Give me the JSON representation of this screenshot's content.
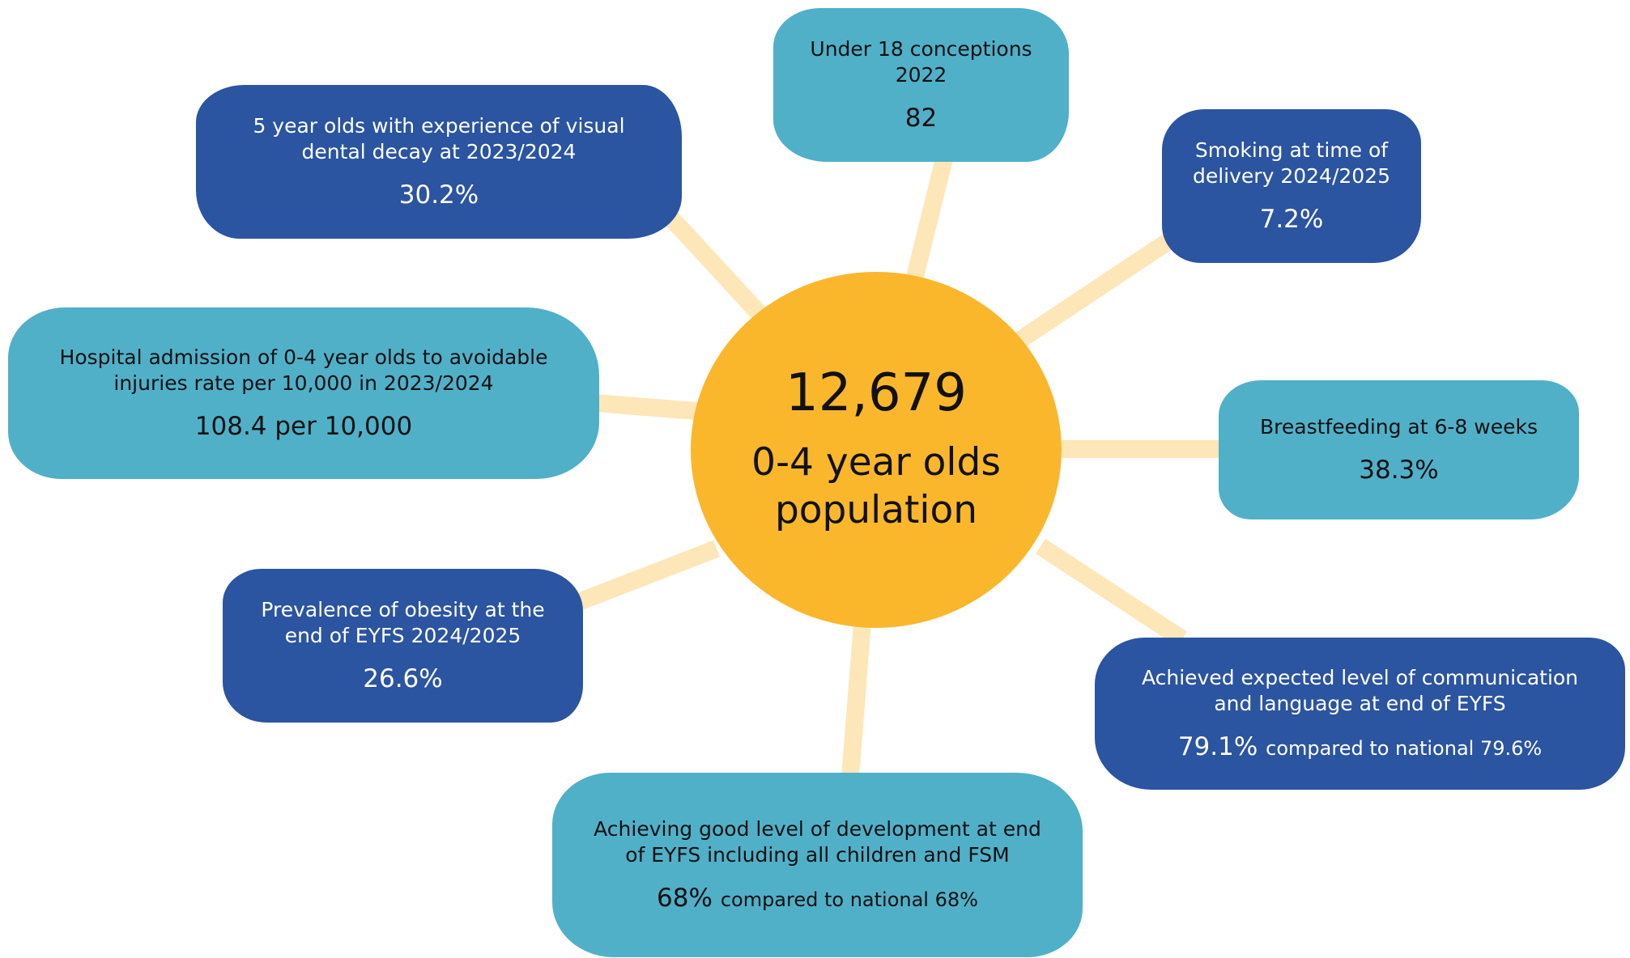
{
  "center": {
    "number": "12,679",
    "label": "0-4 year olds population"
  },
  "colors": {
    "center": "#fab72c",
    "dark_bubble": "#2b54a1",
    "light_bubble": "#50b0c8",
    "connector": "#fde7b9"
  },
  "bubbles": {
    "dental": {
      "title": "5 year olds with experience of visual dental decay at 2023/2024",
      "value": "30.2%"
    },
    "conceptions": {
      "title": "Under 18 conceptions 2022",
      "value": "82"
    },
    "smoking": {
      "title": "Smoking at time of delivery 2024/2025",
      "value": "7.2%"
    },
    "hospital": {
      "title": "Hospital admission of 0-4 year olds to avoidable injuries rate per 10,000 in 2023/2024",
      "value": "108.4 per 10,000"
    },
    "breastfeeding": {
      "title": "Breastfeeding at 6-8 weeks",
      "value": "38.3%"
    },
    "obesity": {
      "title": "Prevalence of obesity at the end of EYFS 2024/2025",
      "value": "26.6%"
    },
    "communication": {
      "title": "Achieved expected level of communication and language at end of EYFS",
      "value": "79.1%",
      "compare": "compared to national 79.6%"
    },
    "development": {
      "title": "Achieving good level of development at end of EYFS including all children and FSM",
      "value": "68%",
      "compare": "compared to national 68%"
    }
  }
}
